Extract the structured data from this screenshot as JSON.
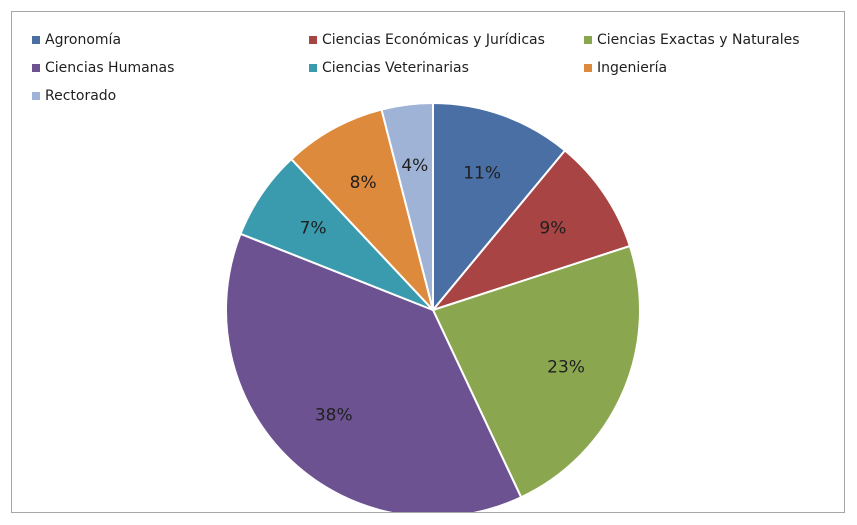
{
  "chart_data": {
    "type": "pie",
    "title": "",
    "legend_position": "top",
    "slices": [
      {
        "name": "Agronomía",
        "value": 11,
        "label": "11%",
        "color": "#4a6fa5"
      },
      {
        "name": "Ciencias Económicas y Jurídicas",
        "value": 9,
        "label": "9%",
        "color": "#a84443"
      },
      {
        "name": "Ciencias Exactas y Naturales",
        "value": 23,
        "label": "23%",
        "color": "#8aa750"
      },
      {
        "name": "Ciencias Humanas",
        "value": 38,
        "label": "38%",
        "color": "#6c5291"
      },
      {
        "name": "Ciencias Veterinarias",
        "value": 7,
        "label": "7%",
        "color": "#3a9aae"
      },
      {
        "name": "Ingeniería",
        "value": 8,
        "label": "8%",
        "color": "#de8a3c"
      },
      {
        "name": "Rectorado",
        "value": 4,
        "label": "4%",
        "color": "#9fb3d6"
      }
    ]
  }
}
